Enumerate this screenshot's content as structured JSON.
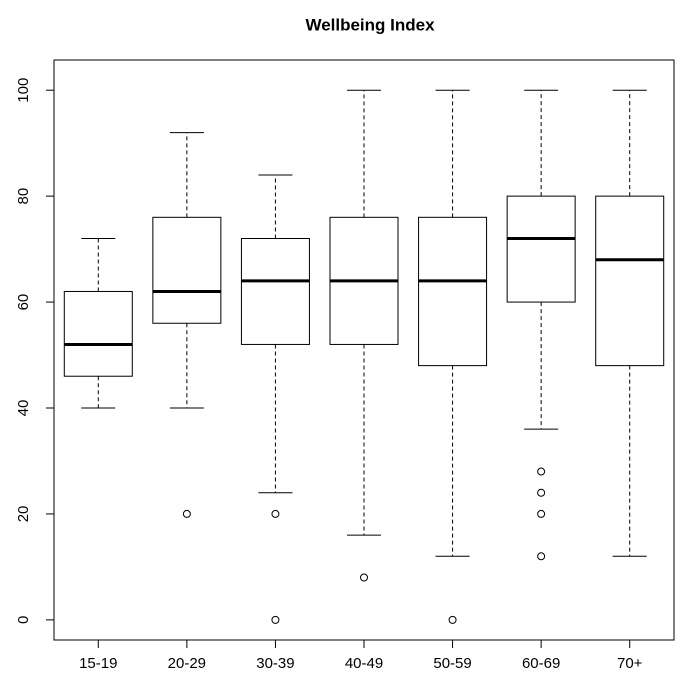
{
  "chart_data": {
    "type": "boxplot",
    "title": "Wellbeing Index",
    "categories": [
      "15-19",
      "20-29",
      "30-39",
      "40-49",
      "50-59",
      "60-69",
      "70+"
    ],
    "boxes": [
      {
        "min": 40,
        "q1": 46,
        "median": 52,
        "q3": 62,
        "max": 72,
        "outliers": []
      },
      {
        "min": 40,
        "q1": 56,
        "median": 62,
        "q3": 76,
        "max": 92,
        "outliers": [
          20
        ]
      },
      {
        "min": 24,
        "q1": 52,
        "median": 64,
        "q3": 72,
        "max": 84,
        "outliers": [
          20,
          0
        ]
      },
      {
        "min": 16,
        "q1": 52,
        "median": 64,
        "q3": 76,
        "max": 100,
        "outliers": [
          8
        ]
      },
      {
        "min": 12,
        "q1": 48,
        "median": 64,
        "q3": 76,
        "max": 100,
        "outliers": [
          0
        ]
      },
      {
        "min": 36,
        "q1": 60,
        "median": 72,
        "q3": 80,
        "max": 100,
        "outliers": [
          28,
          24,
          20,
          12
        ]
      },
      {
        "min": 12,
        "q1": 48,
        "median": 68,
        "q3": 80,
        "max": 100,
        "outliers": []
      }
    ],
    "color": "#000000",
    "ylim": [
      -3.8,
      105.7
    ],
    "yticks": [
      0,
      20,
      40,
      60,
      80,
      100
    ]
  }
}
